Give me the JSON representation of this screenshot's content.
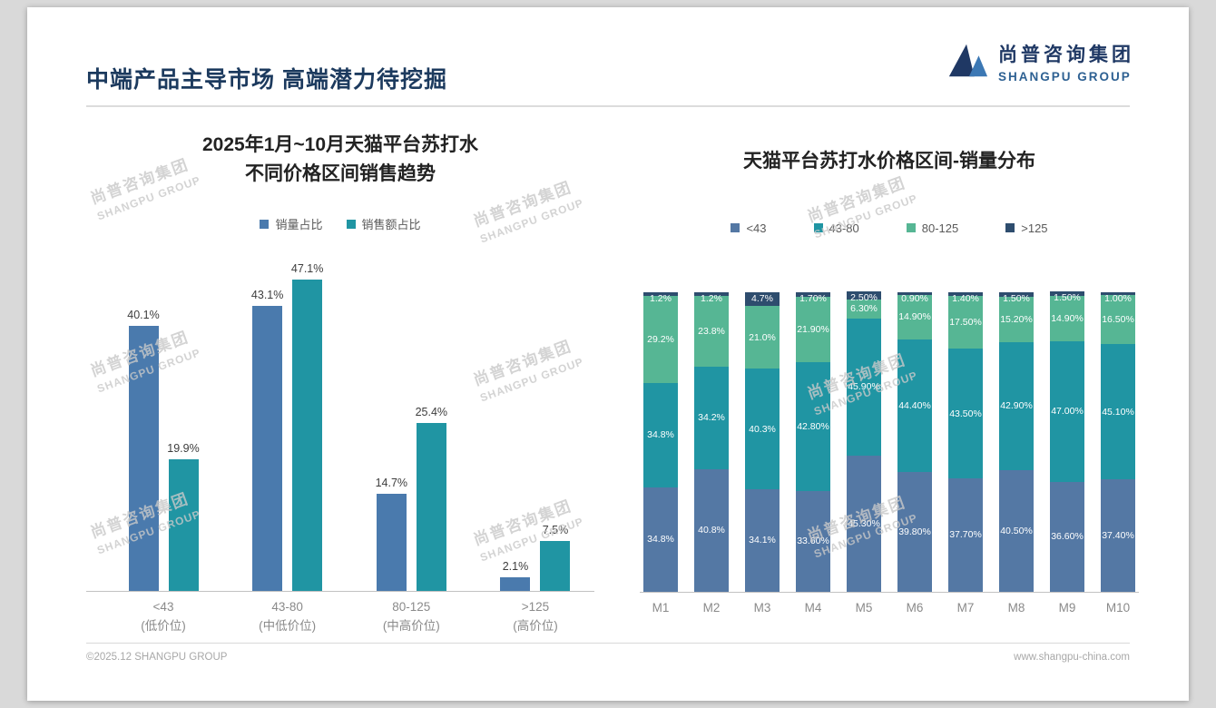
{
  "header": {
    "title": "中端产品主导市场 高端潜力待挖掘"
  },
  "logo": {
    "cn": "尚普咨询集团",
    "en": "SHANGPU GROUP"
  },
  "watermark": {
    "line1": "尚普咨询集团",
    "line2": "SHANGPU GROUP"
  },
  "footer": {
    "left": "©2025.12 SHANGPU GROUP",
    "right": "www.shangpu-china.com"
  },
  "left_chart": {
    "title_line1": "2025年1月~10月天猫平台苏打水",
    "title_line2": "不同价格区间销售趋势",
    "series": [
      {
        "name": "销量占比",
        "color": "#4a7aad",
        "values": [
          40.1,
          43.1,
          14.7,
          2.1
        ],
        "labels": [
          "40.1%",
          "43.1%",
          "14.7%",
          "2.1%"
        ]
      },
      {
        "name": "销售额占比",
        "color": "#2095a3",
        "values": [
          19.9,
          47.1,
          25.4,
          7.5
        ],
        "labels": [
          "19.9%",
          "47.1%",
          "25.4%",
          "7.5%"
        ]
      }
    ],
    "categories": [
      {
        "name": "<43",
        "sub": "(低价位)"
      },
      {
        "name": "43-80",
        "sub": "(中低价位)"
      },
      {
        "name": "80-125",
        "sub": "(中高价位)"
      },
      {
        "name": ">125",
        "sub": "(高价位)"
      }
    ]
  },
  "right_chart": {
    "title": "天猫平台苏打水价格区间-销量分布",
    "series": [
      {
        "name": "<43",
        "color": "#5478a4"
      },
      {
        "name": "43-80",
        "color": "#2095a3"
      },
      {
        "name": "80-125",
        "color": "#56b694"
      },
      {
        "name": ">125",
        "color": "#2e4d6e"
      }
    ],
    "months": [
      {
        "label": "M1",
        "values": [
          34.8,
          34.8,
          29.2,
          1.2
        ],
        "labels": [
          "34.8%",
          "34.8%",
          "29.2%",
          "1.2%"
        ]
      },
      {
        "label": "M2",
        "values": [
          40.8,
          34.2,
          23.8,
          1.2
        ],
        "labels": [
          "40.8%",
          "34.2%",
          "23.8%",
          "1.2%"
        ]
      },
      {
        "label": "M3",
        "values": [
          34.1,
          40.3,
          21.0,
          4.7
        ],
        "labels": [
          "34.1%",
          "40.3%",
          "21.0%",
          "4.7%"
        ]
      },
      {
        "label": "M4",
        "values": [
          33.6,
          42.8,
          21.9,
          1.7
        ],
        "labels": [
          "33.60%",
          "42.80%",
          "21.90%",
          "1.70%"
        ]
      },
      {
        "label": "M5",
        "values": [
          45.3,
          45.9,
          6.3,
          2.5
        ],
        "labels": [
          "45.30%",
          "45.90%",
          "6.30%",
          "2.50%"
        ]
      },
      {
        "label": "M6",
        "values": [
          39.8,
          44.4,
          14.9,
          0.9
        ],
        "labels": [
          "39.80%",
          "44.40%",
          "14.90%",
          "0.90%"
        ]
      },
      {
        "label": "M7",
        "values": [
          37.7,
          43.5,
          17.5,
          1.4
        ],
        "labels": [
          "37.70%",
          "43.50%",
          "17.50%",
          "1.40%"
        ]
      },
      {
        "label": "M8",
        "values": [
          40.5,
          42.9,
          15.2,
          1.5
        ],
        "labels": [
          "40.50%",
          "42.90%",
          "15.20%",
          "1.50%"
        ]
      },
      {
        "label": "M9",
        "values": [
          36.6,
          47.0,
          14.9,
          1.5
        ],
        "labels": [
          "36.60%",
          "47.00%",
          "14.90%",
          "1.50%"
        ]
      },
      {
        "label": "M10",
        "values": [
          37.4,
          45.1,
          16.5,
          1.0
        ],
        "labels": [
          "37.40%",
          "45.10%",
          "16.50%",
          "1.00%"
        ]
      }
    ]
  },
  "chart_data": [
    {
      "type": "bar",
      "title": "2025年1月~10月天猫平台苏打水不同价格区间销售趋势",
      "categories": [
        "<43 (低价位)",
        "43-80 (中低价位)",
        "80-125 (中高价位)",
        ">125 (高价位)"
      ],
      "series": [
        {
          "name": "销量占比",
          "values": [
            40.1,
            43.1,
            14.7,
            2.1
          ]
        },
        {
          "name": "销售额占比",
          "values": [
            19.9,
            47.1,
            25.4,
            7.5
          ]
        }
      ],
      "unit": "percent",
      "ylim": [
        0,
        50
      ],
      "legend_position": "top",
      "grid": false
    },
    {
      "type": "bar",
      "subtype": "stacked-100",
      "title": "天猫平台苏打水价格区间-销量分布",
      "categories": [
        "M1",
        "M2",
        "M3",
        "M4",
        "M5",
        "M6",
        "M7",
        "M8",
        "M9",
        "M10"
      ],
      "series": [
        {
          "name": "<43",
          "values": [
            34.8,
            40.8,
            34.1,
            33.6,
            45.3,
            39.8,
            37.7,
            40.5,
            36.6,
            37.4
          ]
        },
        {
          "name": "43-80",
          "values": [
            34.8,
            34.2,
            40.3,
            42.8,
            45.9,
            44.4,
            43.5,
            42.9,
            47.0,
            45.1
          ]
        },
        {
          "name": "80-125",
          "values": [
            29.2,
            23.8,
            21.0,
            21.9,
            6.3,
            14.9,
            17.5,
            15.2,
            14.9,
            16.5
          ]
        },
        {
          "name": ">125",
          "values": [
            1.2,
            1.2,
            4.7,
            1.7,
            2.5,
            0.9,
            1.4,
            1.5,
            1.5,
            1.0
          ]
        }
      ],
      "unit": "percent",
      "ylim": [
        0,
        100
      ],
      "legend_position": "top",
      "grid": false
    }
  ]
}
